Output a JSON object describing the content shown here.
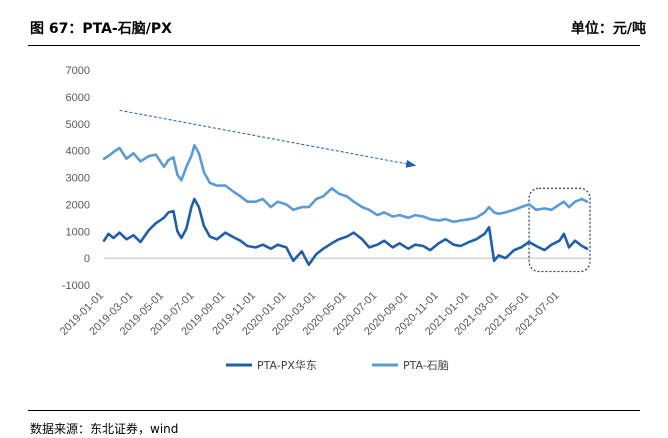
{
  "header": {
    "figure_title": "图 67：PTA-石脑/PX",
    "unit": "单位：元/吨"
  },
  "footer": {
    "source": "数据来源：东北证券，wind"
  },
  "chart_data": {
    "type": "line",
    "title": "",
    "xlabel": "",
    "ylabel": "",
    "ylim": [
      -1000,
      7000
    ],
    "yticks": [
      -1000,
      0,
      1000,
      2000,
      3000,
      4000,
      5000,
      6000,
      7000
    ],
    "xlim": [
      "2019-01-01",
      "2021-08-31"
    ],
    "xticks": [
      "2019-01-01",
      "2019-03-01",
      "2019-05-01",
      "2019-07-01",
      "2019-09-01",
      "2019-11-01",
      "2020-01-01",
      "2020-03-01",
      "2020-05-01",
      "2020-07-01",
      "2020-09-01",
      "2020-11-01",
      "2021-01-01",
      "2021-03-01",
      "2021-05-01",
      "2021-07-01"
    ],
    "grid": false,
    "legend_position": "bottom-center",
    "series": [
      {
        "name": "PTA-PX华东",
        "color": "#1f5fa8",
        "x": [
          "2019-01-01",
          "2019-01-10",
          "2019-01-20",
          "2019-02-01",
          "2019-02-15",
          "2019-03-01",
          "2019-03-15",
          "2019-04-01",
          "2019-04-15",
          "2019-05-01",
          "2019-05-10",
          "2019-05-20",
          "2019-05-28",
          "2019-06-05",
          "2019-06-15",
          "2019-06-25",
          "2019-07-01",
          "2019-07-10",
          "2019-07-20",
          "2019-08-01",
          "2019-08-15",
          "2019-09-01",
          "2019-09-15",
          "2019-10-01",
          "2019-10-15",
          "2019-11-01",
          "2019-11-15",
          "2019-12-01",
          "2019-12-15",
          "2020-01-01",
          "2020-01-15",
          "2020-02-01",
          "2020-02-15",
          "2020-03-01",
          "2020-03-15",
          "2020-04-01",
          "2020-04-15",
          "2020-05-01",
          "2020-05-15",
          "2020-06-01",
          "2020-06-15",
          "2020-07-01",
          "2020-07-15",
          "2020-08-01",
          "2020-08-15",
          "2020-09-01",
          "2020-09-15",
          "2020-10-01",
          "2020-10-15",
          "2020-11-01",
          "2020-11-15",
          "2020-12-01",
          "2020-12-15",
          "2021-01-01",
          "2021-01-15",
          "2021-02-01",
          "2021-02-10",
          "2021-02-20",
          "2021-03-01",
          "2021-03-15",
          "2021-04-01",
          "2021-04-15",
          "2021-05-01",
          "2021-05-15",
          "2021-06-01",
          "2021-06-15",
          "2021-07-01",
          "2021-07-10",
          "2021-07-20",
          "2021-08-01",
          "2021-08-15",
          "2021-08-25"
        ],
        "values": [
          650,
          900,
          750,
          950,
          700,
          850,
          600,
          1050,
          1300,
          1500,
          1700,
          1750,
          1000,
          750,
          1100,
          1900,
          2200,
          1900,
          1200,
          800,
          700,
          950,
          800,
          650,
          450,
          400,
          500,
          350,
          500,
          400,
          -100,
          250,
          -250,
          150,
          350,
          550,
          700,
          800,
          950,
          700,
          400,
          500,
          650,
          400,
          550,
          350,
          500,
          450,
          300,
          550,
          700,
          500,
          450,
          600,
          700,
          900,
          1150,
          -100,
          100,
          0,
          300,
          400,
          600,
          450,
          300,
          500,
          650,
          900,
          400,
          650,
          450,
          350
        ]
      },
      {
        "name": "PTA-石脑",
        "color": "#5b9bd5",
        "x": [
          "2019-01-01",
          "2019-01-10",
          "2019-01-20",
          "2019-02-01",
          "2019-02-15",
          "2019-03-01",
          "2019-03-15",
          "2019-04-01",
          "2019-04-15",
          "2019-05-01",
          "2019-05-10",
          "2019-05-20",
          "2019-05-28",
          "2019-06-05",
          "2019-06-15",
          "2019-06-25",
          "2019-07-01",
          "2019-07-10",
          "2019-07-20",
          "2019-08-01",
          "2019-08-15",
          "2019-09-01",
          "2019-09-15",
          "2019-10-01",
          "2019-10-15",
          "2019-11-01",
          "2019-11-15",
          "2019-12-01",
          "2019-12-15",
          "2020-01-01",
          "2020-01-15",
          "2020-02-01",
          "2020-02-15",
          "2020-03-01",
          "2020-03-15",
          "2020-04-01",
          "2020-04-15",
          "2020-05-01",
          "2020-05-15",
          "2020-06-01",
          "2020-06-15",
          "2020-07-01",
          "2020-07-15",
          "2020-08-01",
          "2020-08-15",
          "2020-09-01",
          "2020-09-15",
          "2020-10-01",
          "2020-10-15",
          "2020-11-01",
          "2020-11-15",
          "2020-12-01",
          "2020-12-15",
          "2021-01-01",
          "2021-01-15",
          "2021-02-01",
          "2021-02-10",
          "2021-02-20",
          "2021-03-01",
          "2021-03-15",
          "2021-04-01",
          "2021-04-15",
          "2021-05-01",
          "2021-05-15",
          "2021-06-01",
          "2021-06-15",
          "2021-07-01",
          "2021-07-10",
          "2021-07-20",
          "2021-08-01",
          "2021-08-15",
          "2021-08-25"
        ],
        "values": [
          3700,
          3800,
          3950,
          4100,
          3700,
          3900,
          3600,
          3800,
          3850,
          3400,
          3650,
          3750,
          3100,
          2900,
          3400,
          3800,
          4200,
          3900,
          3200,
          2800,
          2700,
          2700,
          2500,
          2300,
          2100,
          2100,
          2200,
          1900,
          2100,
          2000,
          1800,
          1900,
          1900,
          2200,
          2300,
          2600,
          2400,
          2300,
          2100,
          1900,
          1800,
          1600,
          1700,
          1550,
          1600,
          1500,
          1600,
          1550,
          1450,
          1400,
          1450,
          1350,
          1400,
          1450,
          1500,
          1700,
          1900,
          1700,
          1650,
          1700,
          1800,
          1900,
          2000,
          1800,
          1850,
          1800,
          2000,
          2100,
          1900,
          2100,
          2200,
          2100
        ]
      }
    ],
    "annotations": [
      {
        "type": "trend-arrow",
        "from": [
          "2019-02-01",
          5500
        ],
        "to": [
          "2020-09-15",
          3450
        ],
        "color": "#1f5fa8"
      },
      {
        "type": "highlight-box",
        "from": [
          "2021-05-01",
          2600
        ],
        "to": [
          "2021-08-31",
          -500
        ],
        "color": "#1f3a80"
      }
    ]
  }
}
